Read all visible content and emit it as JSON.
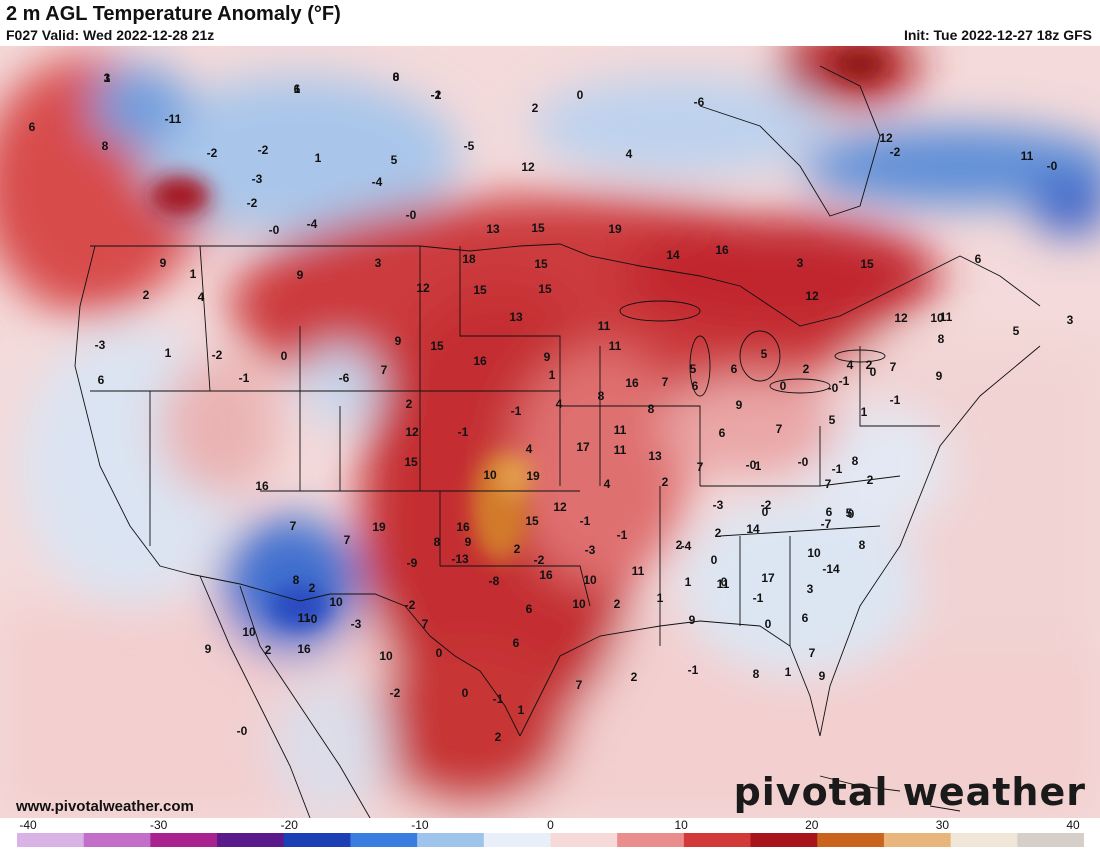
{
  "header": {
    "title": "2 m AGL Temperature Anomaly (°F)",
    "valid": "F027 Valid: Wed 2022-12-28 21z",
    "init": "Init: Tue 2022-12-27 18z GFS"
  },
  "footer": {
    "website": "www.pivotalweather.com",
    "logo": "pivotal weather"
  },
  "colorbar": {
    "ticks": [
      "-40",
      "-30",
      "-20",
      "-10",
      "0",
      "10",
      "20",
      "30",
      "40"
    ],
    "colors": [
      "#d9b3e6",
      "#c36fc9",
      "#a8238f",
      "#5b1a8c",
      "#1d3fb5",
      "#3a7de0",
      "#9fc4ec",
      "#e8eff8",
      "#f6d9d9",
      "#e98d8d",
      "#d23a3a",
      "#a8141b",
      "#c9631e",
      "#e8b57d",
      "#f1e7d8",
      "#d6cfc9"
    ]
  },
  "map": {
    "anomaly_values": [
      "1",
      "0",
      "6",
      "-2",
      "0",
      "-6",
      "6",
      "-11",
      "2",
      "-5",
      "-2",
      "-2",
      "1",
      "5",
      "4",
      "8",
      "-3",
      "-4",
      "-2",
      "-0",
      "12",
      "12",
      "11",
      "-2",
      "-0",
      "-4",
      "13",
      "15",
      "19",
      "16",
      "15",
      "15",
      "9",
      "-0",
      "1",
      "3",
      "18",
      "14",
      "3",
      "6",
      "9",
      "2",
      "4",
      "12",
      "15",
      "13",
      "11",
      "15",
      "-3",
      "1",
      "-2",
      "0",
      "9",
      "12",
      "15",
      "12",
      "11",
      "10",
      "3",
      "5",
      "2",
      "-1",
      "-6",
      "7",
      "16",
      "9",
      "11",
      "7",
      "5",
      "6",
      "5",
      "2",
      "1",
      "8",
      "8",
      "6",
      "0",
      "-0",
      "-1",
      "4",
      "7",
      "9",
      "8",
      "6",
      "2",
      "-1",
      "4",
      "16",
      "11",
      "9",
      "7",
      "5",
      "1",
      "-1",
      "0",
      "-1",
      "15",
      "12",
      "4",
      "19",
      "17",
      "11",
      "13",
      "6",
      "7",
      "-0",
      "-0",
      "1",
      "-1",
      "8",
      "16",
      "10",
      "4",
      "2",
      "-3",
      "-2",
      "7",
      "2",
      "6",
      "5",
      "16",
      "12",
      "15",
      "-1",
      "-1",
      "-4",
      "2",
      "0",
      "-7",
      "0",
      "7",
      "7",
      "19",
      "8",
      "9",
      "2",
      "-3",
      "-2",
      "2",
      "0",
      "11",
      "14",
      "17",
      "10",
      "8",
      "3",
      "-2",
      "-9",
      "-13",
      "-8",
      "16",
      "10",
      "11",
      "1",
      "0",
      "-1",
      "-14",
      "2",
      "8",
      "11",
      "10",
      "-0",
      "-3",
      "7",
      "6",
      "10",
      "2",
      "1",
      "9",
      "0",
      "6",
      "7",
      "16",
      "10",
      "0",
      "6",
      "7",
      "2",
      "-1",
      "8",
      "1",
      "9",
      "10",
      "9",
      "-0",
      "2",
      "-2",
      "0",
      "-1",
      "1",
      "2",
      "3",
      "8",
      "1",
      "-1"
    ]
  }
}
